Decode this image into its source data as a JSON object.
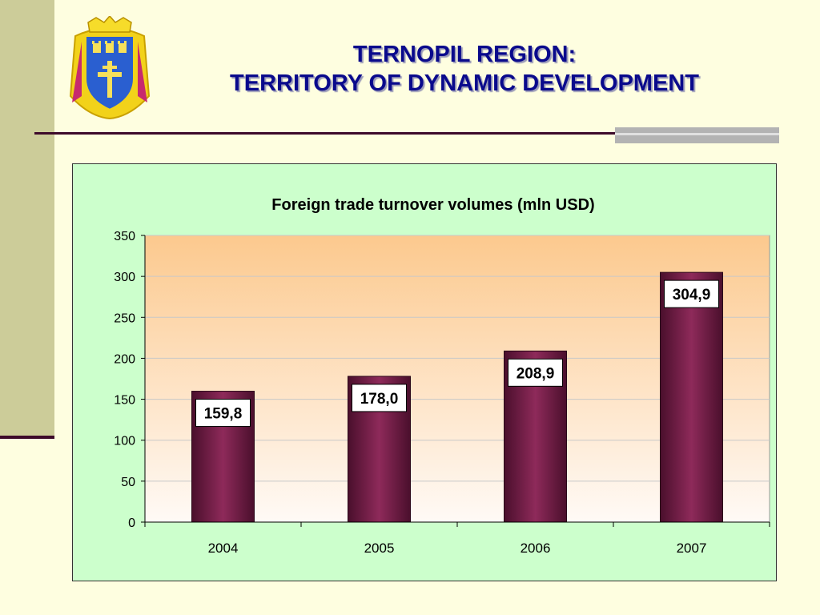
{
  "slide": {
    "title_line1": "TERNOPIL REGION:",
    "title_line2": "TERRITORY OF DYNAMIC DEVELOPMENT",
    "emblem_icon": "ternopil-coat-of-arms-icon"
  },
  "colors": {
    "title": "#0a0a8c",
    "bar": "#8e2a5a",
    "chart_bg": "#ccffcc",
    "plot_top": "#fcc98e",
    "plot_bottom": "#fffaf6"
  },
  "chart_data": {
    "type": "bar",
    "title": "Foreign trade turnover volumes (mln USD)",
    "categories": [
      "2004",
      "2005",
      "2006",
      "2007"
    ],
    "values": [
      159.8,
      178.0,
      208.9,
      304.9
    ],
    "value_labels": [
      "159,8",
      "178,0",
      "208,9",
      "304,9"
    ],
    "ylim": [
      0,
      350
    ],
    "yticks": [
      0,
      50,
      100,
      150,
      200,
      250,
      300,
      350
    ],
    "xlabel": "",
    "ylabel": "",
    "grid": true,
    "legend": "none"
  }
}
